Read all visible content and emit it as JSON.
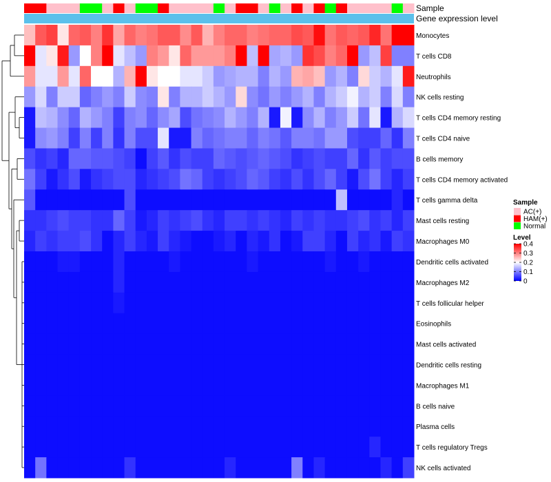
{
  "chart_data": {
    "type": "heatmap",
    "title": "",
    "annotation_tracks": [
      "Sample",
      "Gene expression level"
    ],
    "rows": [
      "Monocytes",
      "T cells CD8",
      "Neutrophils",
      "NK cells resting",
      "T cells CD4 memory resting",
      "T cells CD4 naive",
      "B cells memory",
      "T cells CD4 memory activated",
      "T cells gamma delta",
      "Mast cells resting",
      "Macrophages M0",
      "Dendritic cells activated",
      "Macrophages M2",
      "T cells follicular helper",
      "Eosinophils",
      "Mast cells activated",
      "Dendritic cells resting",
      "Macrophages M1",
      "B cells naive",
      "Plasma cells",
      "T cells regulatory  Tregs",
      "NK cells activated"
    ],
    "sample_groups": [
      "HAM(+)",
      "HAM(+)",
      "AC(+)",
      "AC(+)",
      "AC(+)",
      "Normal",
      "Normal",
      "AC(+)",
      "HAM(+)",
      "AC(+)",
      "Normal",
      "Normal",
      "HAM(+)",
      "AC(+)",
      "AC(+)",
      "AC(+)",
      "AC(+)",
      "Normal",
      "AC(+)",
      "HAM(+)",
      "HAM(+)",
      "AC(+)",
      "Normal",
      "AC(+)",
      "HAM(+)",
      "AC(+)",
      "HAM(+)",
      "Normal",
      "HAM(+)",
      "AC(+)",
      "AC(+)",
      "AC(+)",
      "AC(+)",
      "Normal",
      "AC(+)"
    ],
    "values": [
      [
        0.25,
        0.33,
        0.35,
        0.22,
        0.32,
        0.33,
        0.3,
        0.36,
        0.27,
        0.32,
        0.3,
        0.31,
        0.33,
        0.33,
        0.29,
        0.33,
        0.26,
        0.3,
        0.32,
        0.32,
        0.3,
        0.31,
        0.32,
        0.32,
        0.34,
        0.33,
        0.39,
        0.31,
        0.33,
        0.32,
        0.33,
        0.37,
        0.31,
        0.4,
        0.4
      ],
      [
        0.4,
        0.18,
        0.22,
        0.38,
        0.12,
        0.2,
        0.3,
        0.4,
        0.18,
        0.15,
        0.12,
        0.3,
        0.28,
        0.22,
        0.32,
        0.28,
        0.28,
        0.28,
        0.3,
        0.4,
        0.15,
        0.4,
        0.13,
        0.14,
        0.12,
        0.36,
        0.34,
        0.3,
        0.32,
        0.4,
        0.12,
        0.15,
        0.35,
        0.1,
        0.1
      ],
      [
        0.28,
        0.18,
        0.18,
        0.28,
        0.18,
        0.32,
        0.2,
        0.2,
        0.14,
        0.26,
        0.4,
        0.22,
        0.2,
        0.2,
        0.18,
        0.18,
        0.16,
        0.12,
        0.13,
        0.14,
        0.14,
        0.1,
        0.14,
        0.12,
        0.26,
        0.27,
        0.25,
        0.12,
        0.14,
        0.1,
        0.23,
        0.16,
        0.14,
        0.18,
        0.38
      ],
      [
        0.12,
        0.17,
        0.1,
        0.16,
        0.16,
        0.08,
        0.1,
        0.12,
        0.1,
        0.16,
        0.11,
        0.1,
        0.22,
        0.1,
        0.14,
        0.14,
        0.16,
        0.14,
        0.12,
        0.23,
        0.11,
        0.09,
        0.12,
        0.1,
        0.12,
        0.14,
        0.1,
        0.14,
        0.16,
        0.19,
        0.14,
        0.16,
        0.1,
        0.17,
        0.1
      ],
      [
        0.02,
        0.15,
        0.14,
        0.11,
        0.08,
        0.14,
        0.12,
        0.1,
        0.05,
        0.1,
        0.11,
        0.08,
        0.11,
        0.13,
        0.06,
        0.09,
        0.1,
        0.11,
        0.14,
        0.12,
        0.1,
        0.14,
        0.02,
        0.19,
        0.02,
        0.11,
        0.14,
        0.1,
        0.12,
        0.16,
        0.09,
        0.18,
        0.02,
        0.14,
        0.17
      ],
      [
        0.02,
        0.11,
        0.12,
        0.1,
        0.05,
        0.1,
        0.05,
        0.1,
        0.04,
        0.1,
        0.06,
        0.06,
        0.18,
        0.02,
        0.02,
        0.1,
        0.08,
        0.09,
        0.1,
        0.1,
        0.08,
        0.1,
        0.09,
        0.07,
        0.1,
        0.1,
        0.09,
        0.12,
        0.12,
        0.06,
        0.05,
        0.05,
        0.08,
        0.04,
        0.1
      ],
      [
        0.06,
        0.04,
        0.05,
        0.03,
        0.08,
        0.08,
        0.07,
        0.07,
        0.06,
        0.05,
        0.01,
        0.05,
        0.07,
        0.04,
        0.06,
        0.05,
        0.05,
        0.08,
        0.07,
        0.06,
        0.07,
        0.08,
        0.07,
        0.06,
        0.04,
        0.05,
        0.06,
        0.05,
        0.05,
        0.08,
        0.04,
        0.07,
        0.05,
        0.06,
        0.06
      ],
      [
        0.09,
        0.05,
        0.02,
        0.04,
        0.06,
        0.02,
        0.04,
        0.05,
        0.06,
        0.06,
        0.03,
        0.04,
        0.05,
        0.06,
        0.09,
        0.08,
        0.05,
        0.04,
        0.05,
        0.06,
        0.08,
        0.07,
        0.05,
        0.04,
        0.06,
        0.04,
        0.06,
        0.08,
        0.05,
        0.02,
        0.06,
        0.09,
        0.05,
        0.03,
        0.05
      ],
      [
        0.07,
        0.01,
        0.01,
        0.01,
        0.01,
        0.01,
        0.01,
        0.01,
        0.01,
        0.06,
        0.01,
        0.01,
        0.01,
        0.01,
        0.01,
        0.01,
        0.01,
        0.01,
        0.01,
        0.01,
        0.01,
        0.01,
        0.01,
        0.01,
        0.01,
        0.01,
        0.01,
        0.01,
        0.15,
        0.01,
        0.01,
        0.01,
        0.01,
        0.03,
        0.01
      ],
      [
        0.04,
        0.04,
        0.05,
        0.06,
        0.05,
        0.05,
        0.04,
        0.04,
        0.08,
        0.05,
        0.02,
        0.03,
        0.05,
        0.04,
        0.05,
        0.06,
        0.04,
        0.03,
        0.05,
        0.05,
        0.04,
        0.05,
        0.04,
        0.03,
        0.05,
        0.04,
        0.05,
        0.04,
        0.04,
        0.05,
        0.06,
        0.04,
        0.05,
        0.03,
        0.05
      ],
      [
        0.03,
        0.05,
        0.04,
        0.05,
        0.05,
        0.06,
        0.04,
        0.01,
        0.03,
        0.05,
        0.03,
        0.02,
        0.05,
        0.03,
        0.02,
        0.01,
        0.01,
        0.02,
        0.03,
        0.01,
        0.03,
        0.02,
        0.04,
        0.01,
        0.02,
        0.05,
        0.05,
        0.03,
        0.01,
        0.05,
        0.03,
        0.04,
        0.02,
        0.05,
        0.04
      ],
      [
        0.01,
        0.01,
        0.01,
        0.02,
        0.02,
        0.01,
        0.01,
        0.01,
        0.03,
        0.01,
        0.01,
        0.01,
        0.01,
        0.02,
        0.01,
        0.01,
        0.01,
        0.01,
        0.01,
        0.01,
        0.02,
        0.01,
        0.01,
        0.01,
        0.01,
        0.01,
        0.01,
        0.02,
        0.01,
        0.01,
        0.02,
        0.01,
        0.01,
        0.01,
        0.01
      ],
      [
        0.01,
        0.01,
        0.01,
        0.01,
        0.01,
        0.01,
        0.01,
        0.01,
        0.03,
        0.01,
        0.01,
        0.01,
        0.01,
        0.01,
        0.01,
        0.01,
        0.01,
        0.01,
        0.01,
        0.01,
        0.01,
        0.01,
        0.01,
        0.01,
        0.01,
        0.01,
        0.01,
        0.01,
        0.01,
        0.01,
        0.01,
        0.01,
        0.01,
        0.01,
        0.01
      ],
      [
        0.01,
        0.01,
        0.01,
        0.01,
        0.01,
        0.01,
        0.01,
        0.01,
        0.02,
        0.01,
        0.01,
        0.01,
        0.01,
        0.01,
        0.01,
        0.01,
        0.01,
        0.01,
        0.01,
        0.01,
        0.01,
        0.01,
        0.01,
        0.01,
        0.01,
        0.01,
        0.01,
        0.01,
        0.01,
        0.01,
        0.01,
        0.01,
        0.01,
        0.01,
        0.01
      ],
      [
        0.01,
        0.01,
        0.01,
        0.01,
        0.01,
        0.01,
        0.01,
        0.01,
        0.01,
        0.01,
        0.01,
        0.01,
        0.01,
        0.01,
        0.01,
        0.01,
        0.01,
        0.01,
        0.01,
        0.01,
        0.01,
        0.01,
        0.01,
        0.01,
        0.01,
        0.01,
        0.01,
        0.01,
        0.01,
        0.01,
        0.01,
        0.01,
        0.01,
        0.01,
        0.01
      ],
      [
        0.01,
        0.01,
        0.01,
        0.01,
        0.01,
        0.01,
        0.01,
        0.01,
        0.01,
        0.01,
        0.01,
        0.01,
        0.01,
        0.01,
        0.01,
        0.01,
        0.01,
        0.01,
        0.01,
        0.01,
        0.01,
        0.01,
        0.01,
        0.01,
        0.01,
        0.01,
        0.01,
        0.01,
        0.01,
        0.01,
        0.01,
        0.01,
        0.01,
        0.01,
        0.01
      ],
      [
        0.01,
        0.01,
        0.01,
        0.01,
        0.01,
        0.01,
        0.01,
        0.01,
        0.01,
        0.01,
        0.01,
        0.01,
        0.01,
        0.01,
        0.01,
        0.01,
        0.01,
        0.01,
        0.01,
        0.01,
        0.01,
        0.01,
        0.01,
        0.01,
        0.01,
        0.01,
        0.01,
        0.01,
        0.01,
        0.01,
        0.01,
        0.01,
        0.01,
        0.01,
        0.01
      ],
      [
        0.01,
        0.01,
        0.01,
        0.01,
        0.01,
        0.01,
        0.01,
        0.01,
        0.01,
        0.01,
        0.01,
        0.01,
        0.01,
        0.01,
        0.01,
        0.01,
        0.01,
        0.01,
        0.01,
        0.01,
        0.01,
        0.01,
        0.01,
        0.01,
        0.01,
        0.01,
        0.01,
        0.01,
        0.01,
        0.01,
        0.01,
        0.01,
        0.01,
        0.01,
        0.01
      ],
      [
        0.01,
        0.01,
        0.01,
        0.01,
        0.01,
        0.01,
        0.01,
        0.01,
        0.01,
        0.01,
        0.01,
        0.01,
        0.01,
        0.01,
        0.01,
        0.01,
        0.01,
        0.01,
        0.01,
        0.01,
        0.01,
        0.01,
        0.01,
        0.01,
        0.01,
        0.01,
        0.01,
        0.01,
        0.01,
        0.01,
        0.01,
        0.01,
        0.01,
        0.01,
        0.01
      ],
      [
        0.01,
        0.01,
        0.01,
        0.01,
        0.01,
        0.01,
        0.01,
        0.01,
        0.01,
        0.01,
        0.01,
        0.01,
        0.01,
        0.01,
        0.01,
        0.01,
        0.01,
        0.01,
        0.01,
        0.01,
        0.01,
        0.01,
        0.01,
        0.01,
        0.01,
        0.01,
        0.01,
        0.01,
        0.01,
        0.01,
        0.01,
        0.01,
        0.01,
        0.01,
        0.01
      ],
      [
        0.01,
        0.01,
        0.01,
        0.01,
        0.01,
        0.01,
        0.01,
        0.01,
        0.01,
        0.01,
        0.01,
        0.01,
        0.01,
        0.01,
        0.01,
        0.01,
        0.01,
        0.01,
        0.01,
        0.01,
        0.01,
        0.01,
        0.01,
        0.01,
        0.01,
        0.01,
        0.01,
        0.01,
        0.01,
        0.01,
        0.01,
        0.03,
        0.01,
        0.01,
        0.01
      ],
      [
        0.01,
        0.09,
        0.01,
        0.01,
        0.01,
        0.01,
        0.01,
        0.01,
        0.01,
        0.04,
        0.01,
        0.01,
        0.01,
        0.01,
        0.01,
        0.01,
        0.01,
        0.01,
        0.03,
        0.01,
        0.01,
        0.01,
        0.01,
        0.01,
        0.1,
        0.01,
        0.03,
        0.01,
        0.01,
        0.01,
        0.01,
        0.01,
        0.03,
        0.01,
        0.05
      ]
    ],
    "color_scale": {
      "min": 0,
      "max": 0.4,
      "low": "#0000ff",
      "mid": "#ffffff",
      "high": "#ff0000",
      "mid_value": 0.2
    },
    "legend": {
      "sample_title": "Sample",
      "sample_entries": [
        {
          "label": "AC(+)",
          "color": "#ffc0cb"
        },
        {
          "label": "HAM(+)",
          "color": "#ff0000"
        },
        {
          "label": "Normal",
          "color": "#00ff00"
        }
      ],
      "level_title": "Level",
      "level_ticks": [
        "0.4",
        "0.3",
        "0.2",
        "0.1",
        "0"
      ],
      "level_tick_values": [
        0.4,
        0.3,
        0.2,
        0.1,
        0
      ]
    },
    "gene_expression_color": "#5bc0eb",
    "legend_position": "right"
  }
}
